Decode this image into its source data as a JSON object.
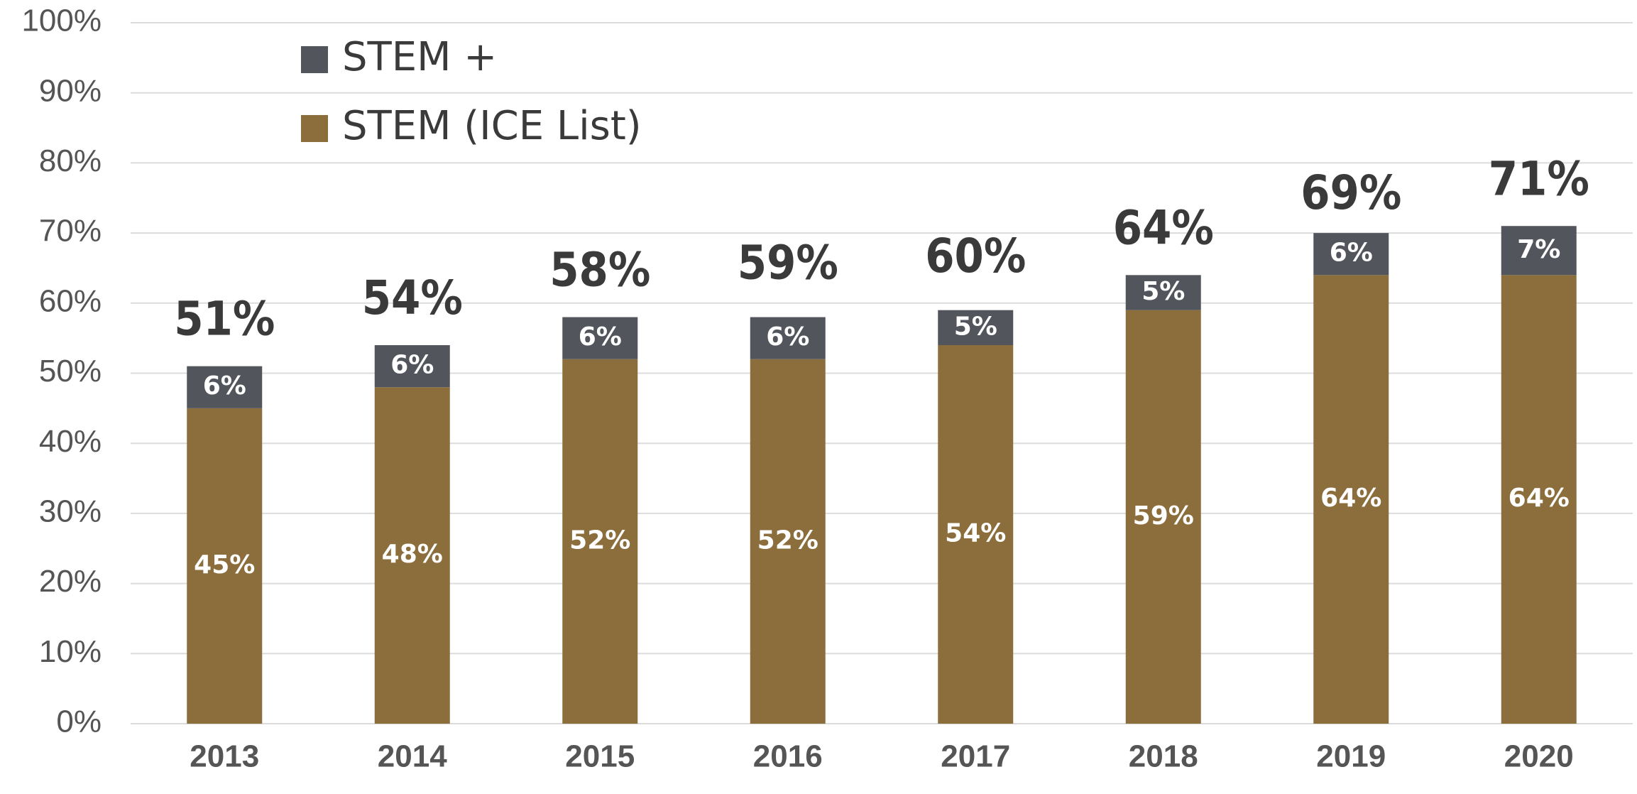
{
  "chart_data": {
    "type": "stacked_bar",
    "categories": [
      "2013",
      "2014",
      "2015",
      "2016",
      "2017",
      "2018",
      "2019",
      "2020"
    ],
    "series": [
      {
        "name": "STEM (ICE List)",
        "color": "#8b6e3c",
        "values": [
          45,
          48,
          52,
          52,
          54,
          59,
          64,
          64
        ],
        "value_labels": [
          "45%",
          "48%",
          "52%",
          "52%",
          "54%",
          "59%",
          "64%",
          "64%"
        ]
      },
      {
        "name": "STEM +",
        "color": "#52565c",
        "values": [
          6,
          6,
          6,
          6,
          5,
          5,
          6,
          7
        ],
        "value_labels": [
          "6%",
          "6%",
          "6%",
          "6%",
          "5%",
          "5%",
          "6%",
          "7%"
        ]
      }
    ],
    "totals": [
      51,
      54,
      58,
      59,
      60,
      64,
      69,
      71
    ],
    "total_labels": [
      "51%",
      "54%",
      "58%",
      "59%",
      "60%",
      "64%",
      "69%",
      "71%"
    ],
    "ylim": [
      0,
      100
    ],
    "yticks": [
      {
        "value": 0,
        "label": "0%"
      },
      {
        "value": 10,
        "label": "10%"
      },
      {
        "value": 20,
        "label": "20%"
      },
      {
        "value": 30,
        "label": "30%"
      },
      {
        "value": 40,
        "label": "40%"
      },
      {
        "value": 50,
        "label": "50%"
      },
      {
        "value": 60,
        "label": "60%"
      },
      {
        "value": 70,
        "label": "70%"
      },
      {
        "value": 80,
        "label": "80%"
      },
      {
        "value": 90,
        "label": "90%"
      },
      {
        "value": 100,
        "label": "100%"
      }
    ],
    "grid": true,
    "legend": "upper left"
  }
}
